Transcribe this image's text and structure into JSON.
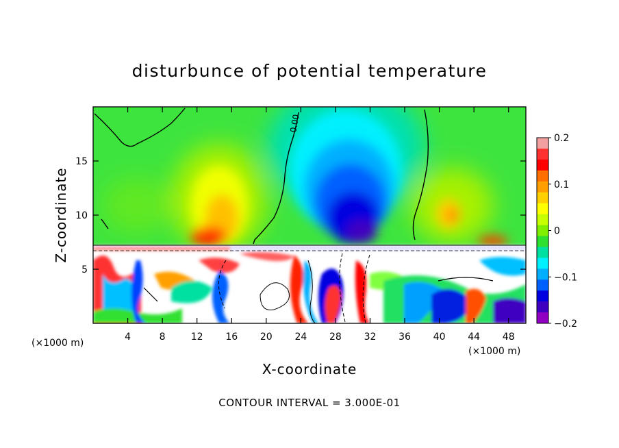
{
  "chart_data": {
    "type": "heatmap",
    "title": "disturbunce of potential temperature",
    "xlabel": "X-coordinate",
    "ylabel": "Z-coordinate",
    "x_unit_left": "(×1000 m)",
    "x_unit_right": "(×1000 m)",
    "footer": "CONTOUR INTERVAL = 3.000E-01",
    "xlim": [
      0,
      50
    ],
    "ylim": [
      0,
      20
    ],
    "x_ticks": [
      4,
      8,
      12,
      16,
      20,
      24,
      28,
      32,
      36,
      40,
      44,
      48
    ],
    "y_ticks": [
      5,
      10,
      15
    ],
    "colorbar": {
      "range": [
        -0.2,
        0.2
      ],
      "ticks": [
        0.2,
        0.1,
        0,
        -0.1,
        -0.2
      ],
      "tick_labels": [
        "0.2",
        "0.1",
        "0",
        "−0.1",
        "−0.2"
      ],
      "colors": [
        "#f2a0a0",
        "#ff3030",
        "#ff0000",
        "#ff7000",
        "#ffa000",
        "#ffd000",
        "#ffff00",
        "#c8ff00",
        "#80f000",
        "#30e030",
        "#00e0a0",
        "#00f0ff",
        "#00b0ff",
        "#0060ff",
        "#0000e0",
        "#4000c0",
        "#9000c0"
      ]
    },
    "contour_labels": [
      "0.00"
    ],
    "features": {
      "cold_anomaly": {
        "x": 31,
        "z": 11,
        "value": -0.2
      },
      "warm_anomaly": {
        "x": 14,
        "z": 10,
        "value": 0.12
      },
      "warm_anomaly_2": {
        "x": 40.5,
        "z": 10,
        "value": 0.1
      },
      "boundary_layer_top_z": 7.3
    }
  }
}
